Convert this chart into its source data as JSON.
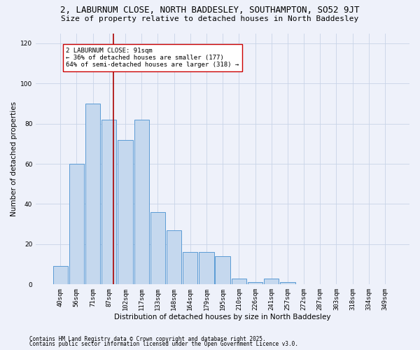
{
  "title1": "2, LABURNUM CLOSE, NORTH BADDESLEY, SOUTHAMPTON, SO52 9JT",
  "title2": "Size of property relative to detached houses in North Baddesley",
  "xlabel": "Distribution of detached houses by size in North Baddesley",
  "ylabel": "Number of detached properties",
  "categories": [
    "40sqm",
    "56sqm",
    "71sqm",
    "87sqm",
    "102sqm",
    "117sqm",
    "133sqm",
    "148sqm",
    "164sqm",
    "179sqm",
    "195sqm",
    "210sqm",
    "226sqm",
    "241sqm",
    "257sqm",
    "272sqm",
    "287sqm",
    "303sqm",
    "318sqm",
    "334sqm",
    "349sqm"
  ],
  "values": [
    9,
    60,
    90,
    82,
    72,
    82,
    36,
    27,
    16,
    16,
    14,
    3,
    1,
    3,
    1,
    0,
    0,
    0,
    0,
    0,
    0
  ],
  "bar_color": "#c5d8ee",
  "bar_edge_color": "#5b9bd5",
  "background_color": "#eef1fa",
  "grid_color": "#c8d4e8",
  "vline_x_idx": 3,
  "vline_color": "#aa0000",
  "annotation_title": "2 LABURNUM CLOSE: 91sqm",
  "annotation_line1": "← 36% of detached houses are smaller (177)",
  "annotation_line2": "64% of semi-detached houses are larger (318) →",
  "annotation_box_color": "#ffffff",
  "annotation_box_edge": "#cc0000",
  "ylim": [
    0,
    125
  ],
  "yticks": [
    0,
    20,
    40,
    60,
    80,
    100,
    120
  ],
  "footnote1": "Contains HM Land Registry data © Crown copyright and database right 2025.",
  "footnote2": "Contains public sector information licensed under the Open Government Licence v3.0.",
  "title1_fontsize": 9,
  "title2_fontsize": 8,
  "axis_label_fontsize": 7.5,
  "tick_fontsize": 6.5,
  "annotation_fontsize": 6.5,
  "footnote_fontsize": 5.5
}
